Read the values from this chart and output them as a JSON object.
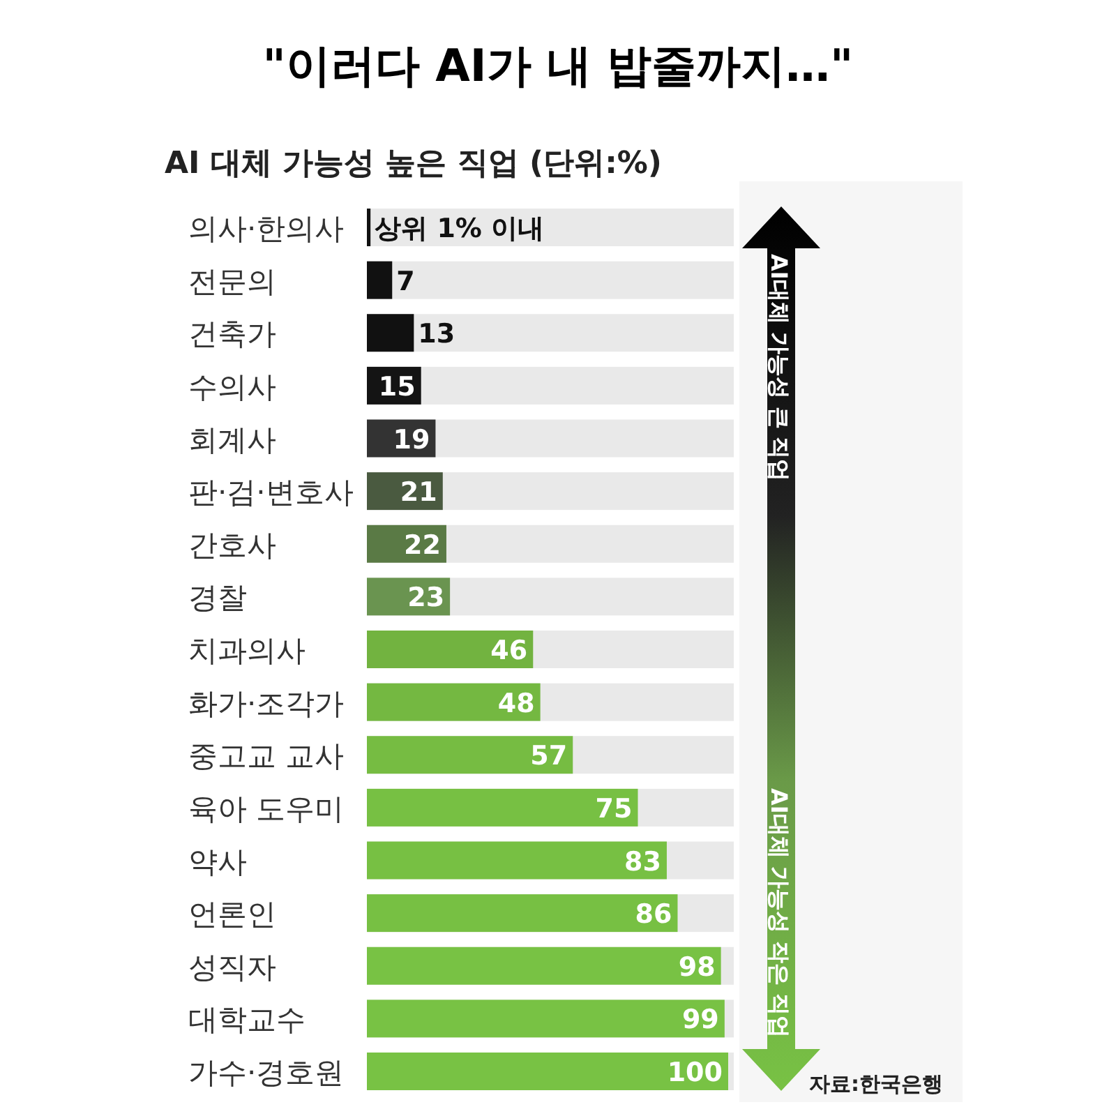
{
  "chart_data": {
    "type": "bar",
    "orientation": "horizontal",
    "title": "\"이러다 AI가 내 밥줄까지…\"",
    "subtitle": "AI 대체 가능성 높은 직업 (단위:%)",
    "categories": [
      "의사·한의사",
      "전문의",
      "건축가",
      "수의사",
      "회계사",
      "판·검·변호사",
      "간호사",
      "경찰",
      "치과의사",
      "화가·조각가",
      "중고교 교사",
      "육아 도우미",
      "약사",
      "언론인",
      "성직자",
      "대학교수",
      "가수·경호원"
    ],
    "values": [
      1,
      7,
      13,
      15,
      19,
      21,
      22,
      23,
      46,
      48,
      57,
      75,
      83,
      86,
      98,
      99,
      100
    ],
    "colors": [
      "#111111",
      "#111111",
      "#111111",
      "#141414",
      "#333333",
      "#4a5a40",
      "#5a7a45",
      "#6a9450",
      "#72b340",
      "#74b841",
      "#76bc42",
      "#77c043",
      "#77c043",
      "#77c043",
      "#78c244",
      "#78c244",
      "#78c244"
    ],
    "value_labels": [
      "상위 1% 이내",
      "7",
      "13",
      "15",
      "19",
      "21",
      "22",
      "23",
      "46",
      "48",
      "57",
      "75",
      "83",
      "86",
      "98",
      "99",
      "100"
    ],
    "xlim": [
      0,
      100
    ],
    "annotations": [
      "AI대체 가능성 큰 직업",
      "AI대체 가능성 작은 직업",
      "자료:한국은행"
    ]
  }
}
